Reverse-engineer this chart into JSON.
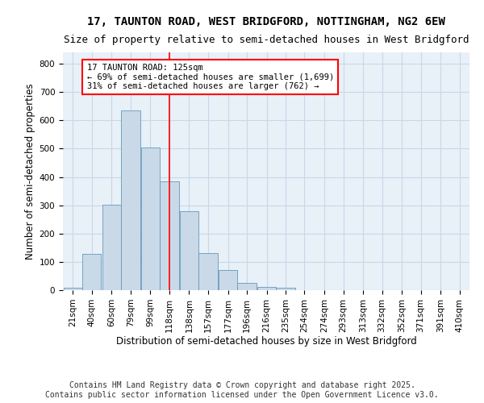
{
  "title1": "17, TAUNTON ROAD, WEST BRIDGFORD, NOTTINGHAM, NG2 6EW",
  "title2": "Size of property relative to semi-detached houses in West Bridgford",
  "xlabel": "Distribution of semi-detached houses by size in West Bridgford",
  "ylabel": "Number of semi-detached properties",
  "footer1": "Contains HM Land Registry data © Crown copyright and database right 2025.",
  "footer2": "Contains public sector information licensed under the Open Government Licence v3.0.",
  "bin_labels": [
    "21sqm",
    "40sqm",
    "60sqm",
    "79sqm",
    "99sqm",
    "118sqm",
    "138sqm",
    "157sqm",
    "177sqm",
    "196sqm",
    "216sqm",
    "235sqm",
    "254sqm",
    "274sqm",
    "293sqm",
    "313sqm",
    "332sqm",
    "352sqm",
    "371sqm",
    "391sqm",
    "410sqm"
  ],
  "bin_values": [
    8,
    128,
    302,
    634,
    505,
    385,
    280,
    130,
    70,
    27,
    12,
    8,
    0,
    0,
    0,
    0,
    0,
    0,
    0,
    0,
    0
  ],
  "bar_color": "#c9d9e8",
  "bar_edge_color": "#6699bb",
  "vline_x_index": 5,
  "annotation_line1": "17 TAUNTON ROAD: 125sqm",
  "annotation_line2": "← 69% of semi-detached houses are smaller (1,699)",
  "annotation_line3": "31% of semi-detached houses are larger (762) →",
  "annotation_box_color": "white",
  "annotation_box_edge_color": "red",
  "vline_color": "red",
  "ylim": [
    0,
    840
  ],
  "yticks": [
    0,
    100,
    200,
    300,
    400,
    500,
    600,
    700,
    800
  ],
  "grid_color": "#c8d8e8",
  "bg_color": "#e8f0f8",
  "title1_fontsize": 10,
  "title2_fontsize": 9,
  "xlabel_fontsize": 8.5,
  "ylabel_fontsize": 8.5,
  "footer_fontsize": 7,
  "tick_fontsize": 7.5,
  "annot_fontsize": 7.5
}
